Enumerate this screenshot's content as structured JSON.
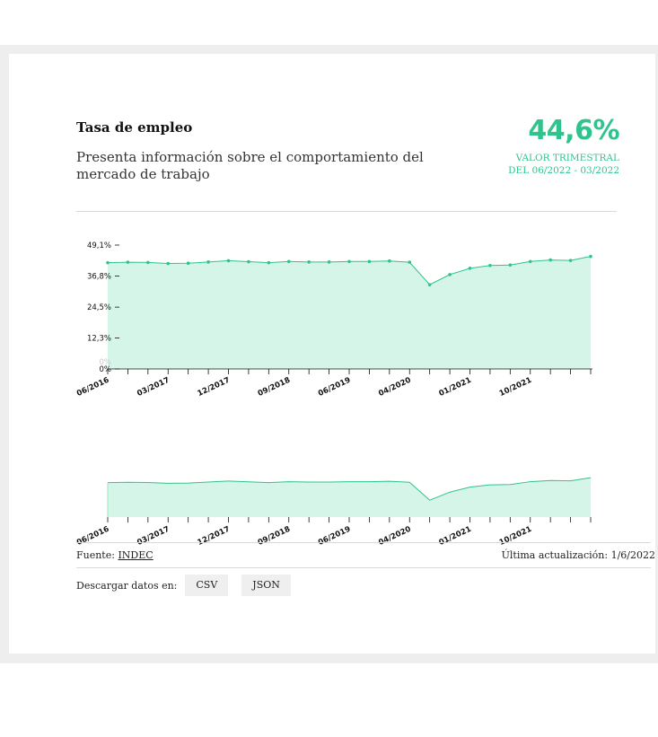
{
  "header": {
    "title": "Tasa de empleo",
    "subtitle": "Presenta información sobre el comportamiento del mercado de trabajo"
  },
  "kpi": {
    "value": "44,6%",
    "label_line1": "VALOR TRIMESTRAL",
    "label_line2": "DEL 06/2022 - 03/2022"
  },
  "chart_data": {
    "type": "area",
    "title": "",
    "xlabel": "",
    "ylabel": "",
    "ylim": [
      0,
      49.1
    ],
    "y_ticks": [
      "49,1%",
      "36,8%",
      "24,5%",
      "12,3%",
      "0%"
    ],
    "y_tick_values": [
      49.1,
      36.8,
      24.5,
      12.3,
      0
    ],
    "zero_ghost_label": "0%",
    "x_tick_labels": [
      "06/2016",
      "03/2017",
      "12/2017",
      "09/2018",
      "06/2019",
      "04/2020",
      "01/2021",
      "10/2021"
    ],
    "grid": false,
    "legend": "none",
    "series": [
      {
        "values": [
          42.1,
          42.3,
          42.2,
          41.8,
          41.9,
          42.4,
          42.9,
          42.5,
          42.1,
          42.6,
          42.4,
          42.4,
          42.6,
          42.6,
          42.8,
          42.3,
          33.4,
          37.4,
          39.9,
          41.0,
          41.2,
          42.6,
          43.2,
          43.0,
          44.6
        ]
      }
    ],
    "overview": {
      "x_tick_labels": [
        "06/2016",
        "03/2017",
        "12/2017",
        "09/2018",
        "06/2019",
        "04/2020",
        "01/2021",
        "10/2021"
      ]
    },
    "colors": {
      "line": "#2fc48d",
      "fill": "#d5f5e8"
    }
  },
  "footer": {
    "source_label": "Fuente:",
    "source_link": "INDEC",
    "updated": "Última actualización: 1/6/2022",
    "download_label": "Descargar datos en:",
    "csv_label": "CSV",
    "json_label": "JSON"
  }
}
